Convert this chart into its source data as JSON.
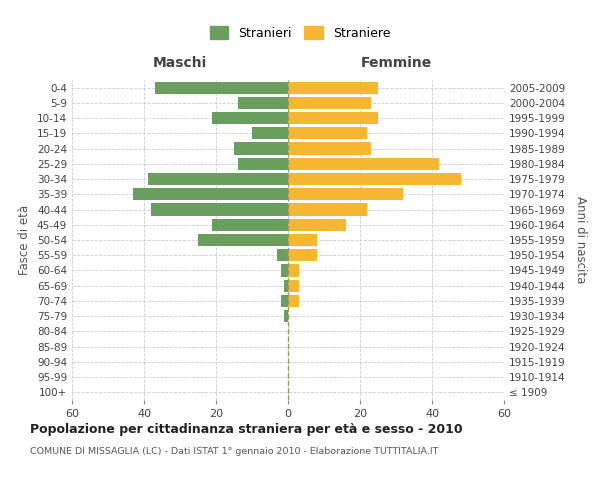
{
  "age_groups": [
    "100+",
    "95-99",
    "90-94",
    "85-89",
    "80-84",
    "75-79",
    "70-74",
    "65-69",
    "60-64",
    "55-59",
    "50-54",
    "45-49",
    "40-44",
    "35-39",
    "30-34",
    "25-29",
    "20-24",
    "15-19",
    "10-14",
    "5-9",
    "0-4"
  ],
  "birth_years": [
    "≤ 1909",
    "1910-1914",
    "1915-1919",
    "1920-1924",
    "1925-1929",
    "1930-1934",
    "1935-1939",
    "1940-1944",
    "1945-1949",
    "1950-1954",
    "1955-1959",
    "1960-1964",
    "1965-1969",
    "1970-1974",
    "1975-1979",
    "1980-1984",
    "1985-1989",
    "1990-1994",
    "1995-1999",
    "2000-2004",
    "2005-2009"
  ],
  "maschi": [
    0,
    0,
    0,
    0,
    0,
    1,
    2,
    1,
    2,
    3,
    25,
    21,
    38,
    43,
    39,
    14,
    15,
    10,
    21,
    14,
    37
  ],
  "femmine": [
    0,
    0,
    0,
    0,
    0,
    0,
    3,
    3,
    3,
    8,
    8,
    16,
    22,
    32,
    48,
    42,
    23,
    22,
    25,
    23,
    25
  ],
  "maschi_color": "#6a9e5e",
  "femmine_color": "#f5b731",
  "background_color": "#ffffff",
  "grid_color": "#cccccc",
  "title": "Popolazione per cittadinanza straniera per età e sesso - 2010",
  "subtitle": "COMUNE DI MISSAGLIA (LC) - Dati ISTAT 1° gennaio 2010 - Elaborazione TUTTITALIA.IT",
  "xlabel_left": "Maschi",
  "xlabel_right": "Femmine",
  "ylabel_left": "Fasce di età",
  "ylabel_right": "Anni di nascita",
  "legend_maschi": "Stranieri",
  "legend_femmine": "Straniere",
  "xlim": 60,
  "bar_height": 0.8
}
